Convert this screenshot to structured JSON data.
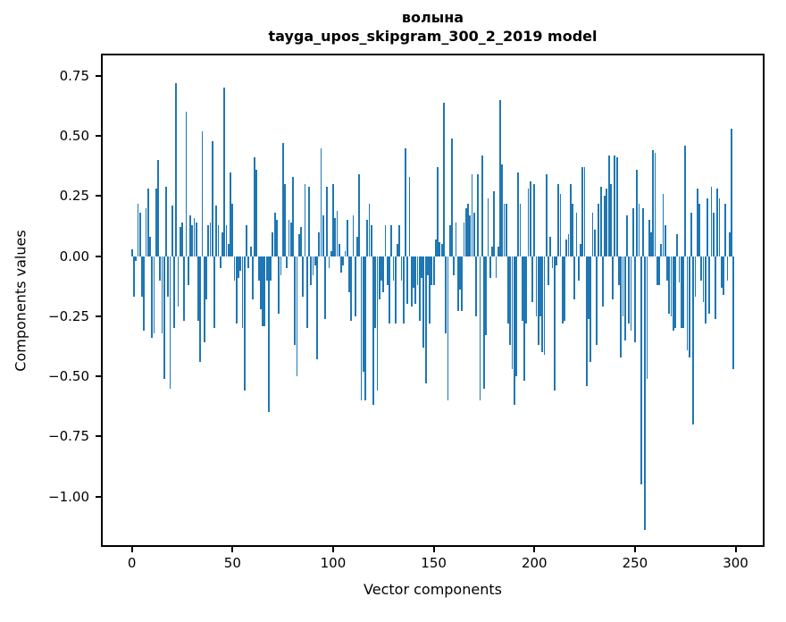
{
  "title": {
    "line1": "волына",
    "line2": "tayga_upos_skipgram_300_2_2019 model"
  },
  "axes": {
    "xlabel": "Vector components",
    "ylabel": "Components values"
  },
  "chart_data": {
    "type": "bar",
    "title": "волына",
    "subtitle": "tayga_upos_skipgram_300_2_2019 model",
    "xlabel": "Vector components",
    "ylabel": "Components values",
    "bar_color": "#1f77b4",
    "axis_color": "#000000",
    "grid": false,
    "legend": "none",
    "n_bars": 300,
    "xlim": [
      -15.4,
      314.4
    ],
    "ylim": [
      -1.21,
      0.843
    ],
    "x_ticks": [
      0,
      50,
      100,
      150,
      200,
      250,
      300
    ],
    "x_tick_labels": [
      "0",
      "50",
      "100",
      "150",
      "200",
      "250",
      "300"
    ],
    "y_ticks": [
      0.75,
      0.5,
      0.25,
      0,
      -0.25,
      -0.5,
      -0.75,
      -1.0
    ],
    "y_tick_labels": [
      "0.75",
      "0.50",
      "0.25",
      "0.00",
      "−0.25",
      "−0.50",
      "−0.75",
      "−1.00"
    ],
    "values": [
      0.03,
      -0.17,
      -0.02,
      0.22,
      0.18,
      -0.17,
      -0.31,
      0.2,
      0.28,
      0.08,
      -0.34,
      -0.32,
      0.28,
      0.4,
      -0.1,
      -0.32,
      -0.51,
      0.29,
      -0.17,
      -0.55,
      0.21,
      -0.3,
      0.72,
      -0.21,
      0.12,
      0.14,
      -0.27,
      0.6,
      -0.12,
      0.17,
      0.13,
      0.16,
      0.14,
      -0.27,
      -0.44,
      0.52,
      -0.36,
      -0.18,
      0.13,
      0.14,
      0.48,
      -0.3,
      0.21,
      0.13,
      -0.05,
      0.1,
      0.7,
      0.13,
      0.05,
      0.35,
      0.22,
      -0.1,
      -0.28,
      -0.09,
      -0.06,
      -0.3,
      -0.56,
      0.13,
      -0.05,
      0.04,
      -0.18,
      0.41,
      0.36,
      -0.1,
      -0.22,
      -0.29,
      -0.29,
      -0.1,
      -0.65,
      -0.1,
      0.1,
      0.18,
      0.15,
      -0.24,
      -0.08,
      0.47,
      0.3,
      -0.05,
      0.15,
      0.14,
      0.33,
      -0.37,
      -0.5,
      0.09,
      0.12,
      -0.17,
      0.3,
      -0.3,
      0.29,
      -0.12,
      -0.08,
      -0.04,
      -0.43,
      0.1,
      0.45,
      0.17,
      -0.26,
      0.29,
      -0.05,
      0.02,
      0.3,
      0.16,
      0.19,
      0.05,
      -0.07,
      -0.04,
      0.02,
      0.15,
      -0.15,
      -0.27,
      0.17,
      -0.25,
      0.08,
      0.34,
      -0.6,
      -0.48,
      -0.6,
      0.15,
      0.22,
      0.13,
      -0.62,
      -0.3,
      -0.56,
      -0.18,
      -0.1,
      -0.15,
      0.13,
      -0.12,
      -0.28,
      0.13,
      -0.1,
      -0.28,
      0.05,
      0.13,
      -0.1,
      -0.28,
      0.45,
      -0.2,
      0.33,
      -0.21,
      -0.13,
      -0.2,
      -0.12,
      -0.27,
      -0.09,
      -0.38,
      -0.53,
      -0.08,
      -0.28,
      -0.12,
      -0.12,
      0.07,
      0.37,
      0.06,
      0.05,
      0.64,
      -0.32,
      -0.6,
      0.13,
      0.49,
      -0.08,
      0.14,
      -0.23,
      -0.14,
      -0.23,
      0.14,
      0.2,
      0.22,
      0.17,
      0.34,
      0.18,
      -0.25,
      0.34,
      -0.6,
      0.42,
      -0.55,
      -0.33,
      0.24,
      -0.09,
      0.04,
      0.27,
      -0.09,
      0.04,
      0.65,
      0.38,
      0.22,
      0.22,
      -0.28,
      -0.37,
      -0.47,
      -0.62,
      -0.5,
      0.35,
      0.22,
      -0.27,
      -0.52,
      -0.28,
      0.28,
      0.31,
      -0.19,
      0.3,
      -0.25,
      -0.37,
      -0.25,
      -0.4,
      -0.41,
      0.34,
      -0.12,
      0.08,
      -0.05,
      -0.56,
      -0.04,
      0.3,
      0.26,
      -0.28,
      -0.27,
      0.07,
      0.09,
      0.3,
      0.22,
      -0.18,
      0.18,
      -0.1,
      0.05,
      0.37,
      0.37,
      -0.54,
      -0.26,
      -0.44,
      0.18,
      0.11,
      -0.37,
      0.22,
      0.29,
      -0.21,
      0.25,
      0.28,
      0.42,
      0.3,
      -0.18,
      0.42,
      0.41,
      -0.12,
      -0.42,
      -0.25,
      -0.35,
      0.17,
      -0.28,
      -0.31,
      0.2,
      -0.36,
      0.36,
      0.22,
      -0.95,
      0.2,
      -1.14,
      -0.51,
      0.15,
      0.1,
      0.44,
      0.43,
      -0.12,
      -0.12,
      0.05,
      0.26,
      0.13,
      -0.1,
      -0.24,
      -0.25,
      -0.31,
      -0.3,
      0.09,
      -0.11,
      -0.3,
      -0.3,
      0.46,
      -0.39,
      -0.42,
      0.18,
      -0.7,
      -0.17,
      0.28,
      0.22,
      -0.1,
      -0.19,
      -0.28,
      0.24,
      -0.24,
      0.29,
      0.18,
      -0.26,
      0.28,
      0.24,
      -0.13,
      -0.16,
      0.22,
      -0.1,
      0.1,
      0.53,
      -0.47
    ]
  }
}
